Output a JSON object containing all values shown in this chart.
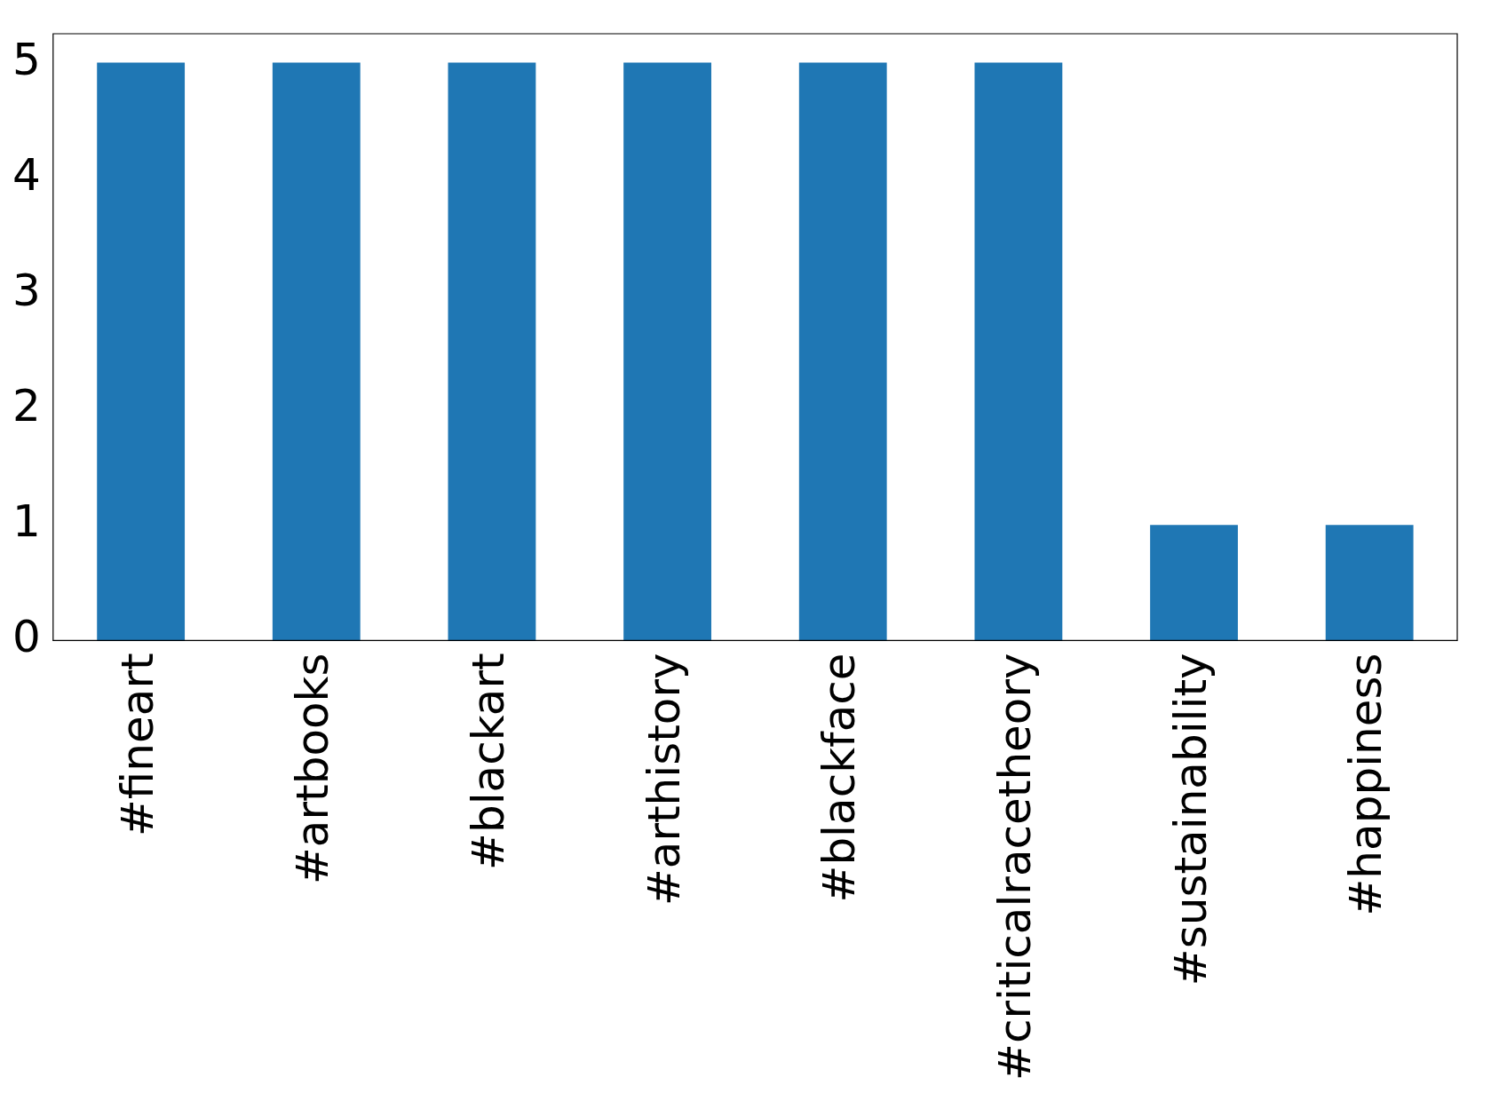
{
  "chart_data": {
    "type": "bar",
    "categories": [
      "#fineart",
      "#artbooks",
      "#blackart",
      "#arthistory",
      "#blackface",
      "#criticalracetheory",
      "#sustainability",
      "#happiness"
    ],
    "values": [
      5,
      5,
      5,
      5,
      5,
      5,
      1,
      1
    ],
    "color": "#1f77b4",
    "ylim": [
      0,
      5.25
    ],
    "yticks": [
      0,
      1,
      2,
      3,
      4,
      5
    ],
    "grid": false,
    "legend": false
  }
}
